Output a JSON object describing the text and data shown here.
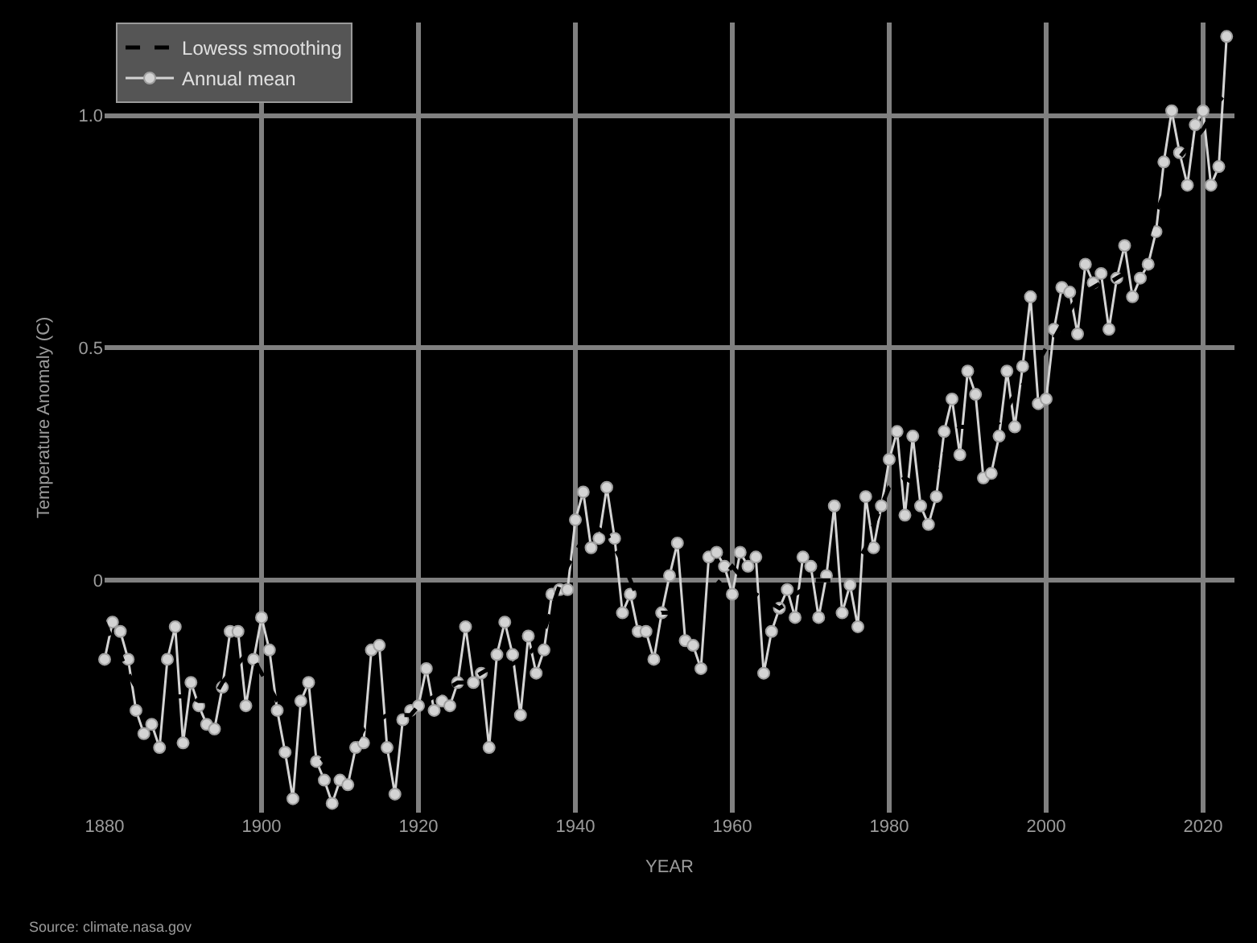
{
  "chart_data": {
    "type": "line",
    "xlabel": "YEAR",
    "ylabel": "Temperature Anomaly (C)",
    "annotations": [
      "Source: climate.nasa.gov"
    ],
    "x": [
      1880,
      1881,
      1882,
      1883,
      1884,
      1885,
      1886,
      1887,
      1888,
      1889,
      1890,
      1891,
      1892,
      1893,
      1894,
      1895,
      1896,
      1897,
      1898,
      1899,
      1900,
      1901,
      1902,
      1903,
      1904,
      1905,
      1906,
      1907,
      1908,
      1909,
      1910,
      1911,
      1912,
      1913,
      1914,
      1915,
      1916,
      1917,
      1918,
      1919,
      1920,
      1921,
      1922,
      1923,
      1924,
      1925,
      1926,
      1927,
      1928,
      1929,
      1930,
      1931,
      1932,
      1933,
      1934,
      1935,
      1936,
      1937,
      1938,
      1939,
      1940,
      1941,
      1942,
      1943,
      1944,
      1945,
      1946,
      1947,
      1948,
      1949,
      1950,
      1951,
      1952,
      1953,
      1954,
      1955,
      1956,
      1957,
      1958,
      1959,
      1960,
      1961,
      1962,
      1963,
      1964,
      1965,
      1966,
      1967,
      1968,
      1969,
      1970,
      1971,
      1972,
      1973,
      1974,
      1975,
      1976,
      1977,
      1978,
      1979,
      1980,
      1981,
      1982,
      1983,
      1984,
      1985,
      1986,
      1987,
      1988,
      1989,
      1990,
      1991,
      1992,
      1993,
      1994,
      1995,
      1996,
      1997,
      1998,
      1999,
      2000,
      2001,
      2002,
      2003,
      2004,
      2005,
      2006,
      2007,
      2008,
      2009,
      2010,
      2011,
      2012,
      2013,
      2014,
      2015,
      2016,
      2017,
      2018,
      2019,
      2020,
      2021,
      2022,
      2023
    ],
    "series": [
      {
        "name": "Lowess smoothing",
        "color": "#000000",
        "line_style": "dashed",
        "marker": "none",
        "values": [
          -0.09,
          -0.13,
          -0.16,
          -0.2,
          -0.23,
          -0.26,
          -0.27,
          -0.27,
          -0.26,
          -0.25,
          -0.25,
          -0.25,
          -0.26,
          -0.26,
          -0.25,
          -0.22,
          -0.2,
          -0.18,
          -0.16,
          -0.17,
          -0.2,
          -0.23,
          -0.26,
          -0.28,
          -0.31,
          -0.33,
          -0.36,
          -0.37,
          -0.39,
          -0.4,
          -0.41,
          -0.38,
          -0.35,
          -0.32,
          -0.31,
          -0.3,
          -0.29,
          -0.29,
          -0.29,
          -0.29,
          -0.27,
          -0.26,
          -0.25,
          -0.24,
          -0.23,
          -0.22,
          -0.22,
          -0.21,
          -0.2,
          -0.19,
          -0.19,
          -0.19,
          -0.18,
          -0.17,
          -0.16,
          -0.14,
          -0.11,
          -0.06,
          -0.01,
          0.03,
          0.06,
          0.09,
          0.1,
          0.11,
          0.1,
          0.07,
          0.04,
          0.0,
          -0.04,
          -0.07,
          -0.08,
          -0.07,
          -0.07,
          -0.07,
          -0.07,
          -0.06,
          -0.05,
          -0.04,
          -0.01,
          0.01,
          0.03,
          0.01,
          -0.01,
          -0.03,
          -0.04,
          -0.05,
          -0.06,
          -0.05,
          -0.03,
          -0.02,
          0.0,
          0.0,
          0.0,
          0.0,
          0.01,
          0.02,
          0.04,
          0.07,
          0.12,
          0.16,
          0.2,
          0.21,
          0.22,
          0.21,
          0.21,
          0.22,
          0.24,
          0.27,
          0.31,
          0.33,
          0.33,
          0.33,
          0.33,
          0.33,
          0.34,
          0.37,
          0.4,
          0.42,
          0.44,
          0.47,
          0.5,
          0.52,
          0.55,
          0.58,
          0.61,
          0.62,
          0.63,
          0.64,
          0.64,
          0.65,
          0.66,
          0.68,
          0.7,
          0.74,
          0.79,
          0.83,
          0.87,
          0.91,
          0.93,
          0.95,
          0.97,
          1.0,
          1.03,
          1.05
        ]
      },
      {
        "name": "Annual mean",
        "color": "#d3d3d3",
        "line_style": "solid",
        "marker": "circle",
        "values": [
          -0.17,
          -0.09,
          -0.11,
          -0.17,
          -0.28,
          -0.33,
          -0.31,
          -0.36,
          -0.17,
          -0.1,
          -0.35,
          -0.22,
          -0.27,
          -0.31,
          -0.32,
          -0.23,
          -0.11,
          -0.11,
          -0.27,
          -0.17,
          -0.08,
          -0.15,
          -0.28,
          -0.37,
          -0.47,
          -0.26,
          -0.22,
          -0.39,
          -0.43,
          -0.48,
          -0.43,
          -0.44,
          -0.36,
          -0.35,
          -0.15,
          -0.14,
          -0.36,
          -0.46,
          -0.3,
          -0.28,
          -0.27,
          -0.19,
          -0.28,
          -0.26,
          -0.27,
          -0.22,
          -0.1,
          -0.22,
          -0.2,
          -0.36,
          -0.16,
          -0.09,
          -0.16,
          -0.29,
          -0.12,
          -0.2,
          -0.15,
          -0.03,
          -0.02,
          -0.02,
          0.13,
          0.19,
          0.07,
          0.09,
          0.2,
          0.09,
          -0.07,
          -0.03,
          -0.11,
          -0.11,
          -0.17,
          -0.07,
          0.01,
          0.08,
          -0.13,
          -0.14,
          -0.19,
          0.05,
          0.06,
          0.03,
          -0.03,
          0.06,
          0.03,
          0.05,
          -0.2,
          -0.11,
          -0.06,
          -0.02,
          -0.08,
          0.05,
          0.03,
          -0.08,
          0.01,
          0.16,
          -0.07,
          -0.01,
          -0.1,
          0.18,
          0.07,
          0.16,
          0.26,
          0.32,
          0.14,
          0.31,
          0.16,
          0.12,
          0.18,
          0.32,
          0.39,
          0.27,
          0.45,
          0.4,
          0.22,
          0.23,
          0.31,
          0.45,
          0.33,
          0.46,
          0.61,
          0.38,
          0.39,
          0.54,
          0.63,
          0.62,
          0.53,
          0.68,
          0.64,
          0.66,
          0.54,
          0.65,
          0.72,
          0.61,
          0.65,
          0.68,
          0.75,
          0.9,
          1.01,
          0.92,
          0.85,
          0.98,
          1.01,
          0.85,
          0.89,
          1.17
        ]
      }
    ],
    "xlim": [
      1880,
      2024
    ],
    "xticks": [
      1880,
      1900,
      1920,
      1940,
      1960,
      1980,
      2000,
      2020
    ],
    "ylim": [
      -0.5,
      1.2
    ],
    "yticks": [
      0,
      0.5,
      {
        "value": 1.0,
        "label": "1.0"
      }
    ],
    "grid": true,
    "legend": "top left"
  }
}
